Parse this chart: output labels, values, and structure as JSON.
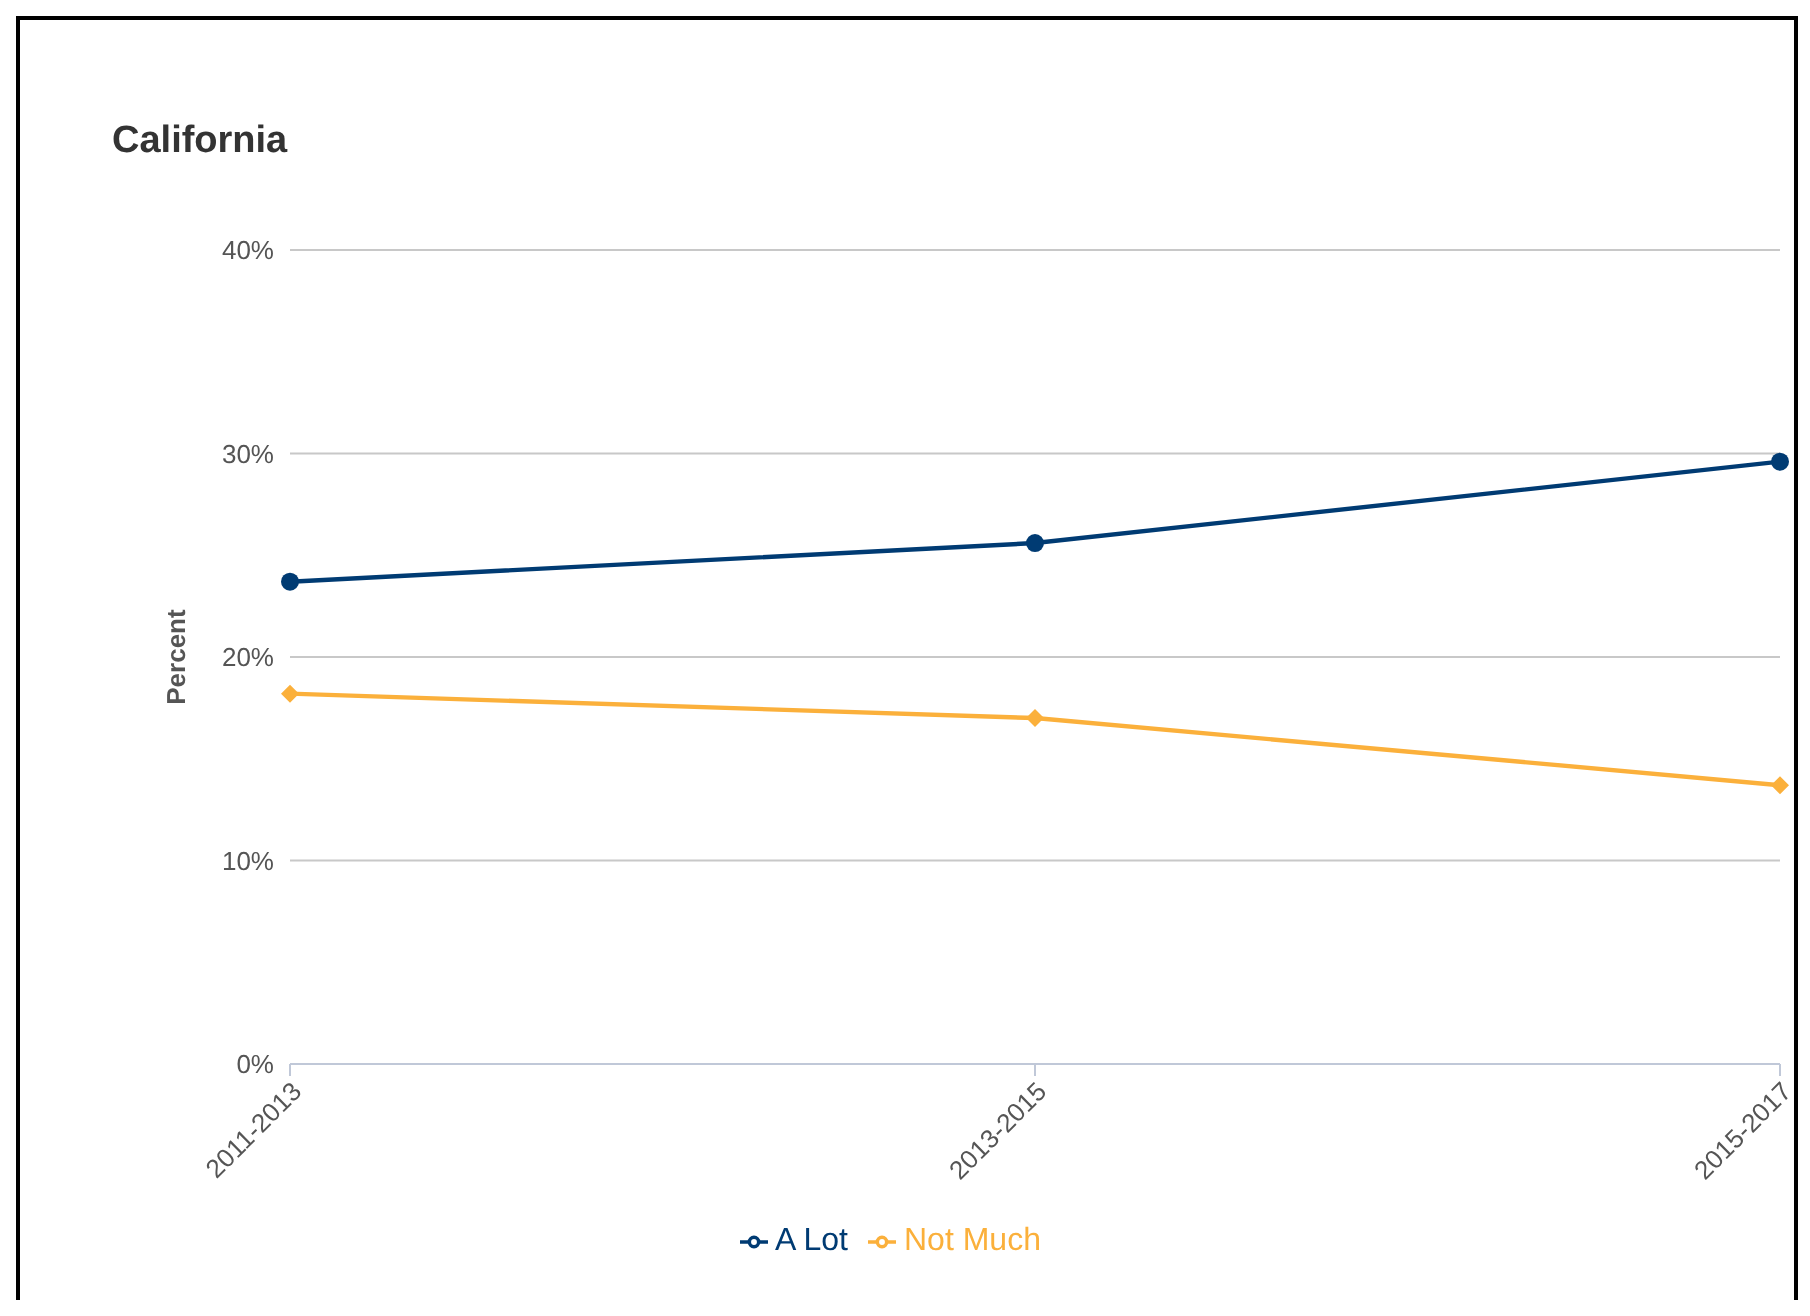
{
  "chart_data": {
    "type": "line",
    "title": "California",
    "ylabel": "Percent",
    "categories": [
      "2011-2013",
      "2013-2015",
      "2015-2017"
    ],
    "series": [
      {
        "name": "A Lot",
        "color": "#003b73",
        "values": [
          23.7,
          25.6,
          29.6
        ],
        "marker": "circle"
      },
      {
        "name": "Not Much",
        "color": "#fbb03b",
        "values": [
          18.2,
          17.0,
          13.7
        ],
        "marker": "diamond"
      }
    ],
    "ylim": [
      0,
      40
    ],
    "yticks": [
      {
        "value": 0,
        "label": "0%"
      },
      {
        "value": 10,
        "label": "10%"
      },
      {
        "value": 20,
        "label": "20%"
      },
      {
        "value": 30,
        "label": "30%"
      },
      {
        "value": 40,
        "label": "40%"
      }
    ],
    "grid": "y",
    "legend": "bottom"
  }
}
